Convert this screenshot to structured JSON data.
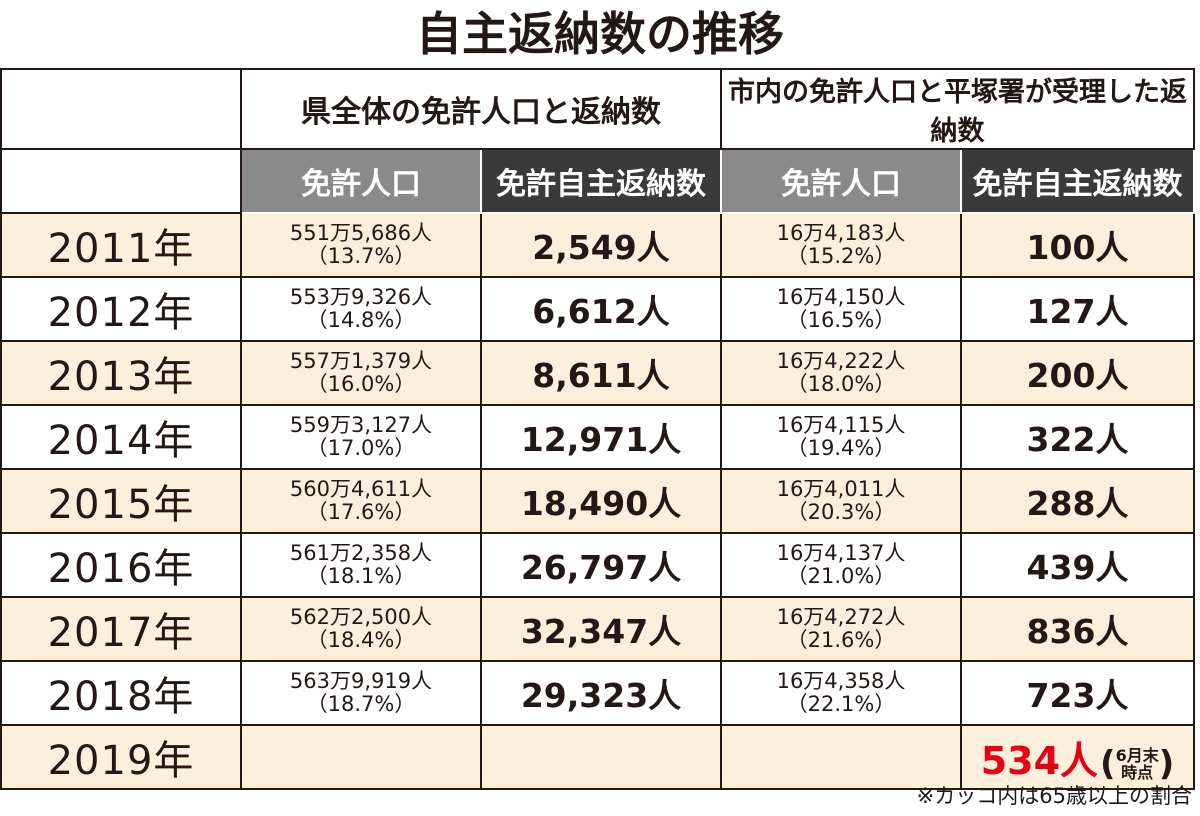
{
  "title": "自主返納数の推移",
  "header": {
    "group1": "県全体の免許人口と返納数",
    "group2": "市内の免許人口と平塚署が受理した返納数",
    "sub": [
      "免許人口",
      "免許自主返納数",
      "免許人口",
      "免許自主返納数"
    ]
  },
  "chart_data": {
    "type": "table",
    "title": "自主返納数の推移",
    "columns": [
      "",
      "免許人口",
      "免許自主返納数",
      "免許人口",
      "免許自主返納数"
    ],
    "rows": [
      {
        "year": "2011年",
        "pref_pop": "551万5,686人",
        "pref_pct": "（13.7%）",
        "pref_ret": "2,549人",
        "city_pop": "16万4,183人",
        "city_pct": "（15.2%）",
        "city_ret": "100人"
      },
      {
        "year": "2012年",
        "pref_pop": "553万9,326人",
        "pref_pct": "（14.8%）",
        "pref_ret": "6,612人",
        "city_pop": "16万4,150人",
        "city_pct": "（16.5%）",
        "city_ret": "127人"
      },
      {
        "year": "2013年",
        "pref_pop": "557万1,379人",
        "pref_pct": "（16.0%）",
        "pref_ret": "8,611人",
        "city_pop": "16万4,222人",
        "city_pct": "（18.0%）",
        "city_ret": "200人"
      },
      {
        "year": "2014年",
        "pref_pop": "559万3,127人",
        "pref_pct": "（17.0%）",
        "pref_ret": "12,971人",
        "city_pop": "16万4,115人",
        "city_pct": "（19.4%）",
        "city_ret": "322人"
      },
      {
        "year": "2015年",
        "pref_pop": "560万4,611人",
        "pref_pct": "（17.6%）",
        "pref_ret": "18,490人",
        "city_pop": "16万4,011人",
        "city_pct": "（20.3%）",
        "city_ret": "288人"
      },
      {
        "year": "2016年",
        "pref_pop": "561万2,358人",
        "pref_pct": "（18.1%）",
        "pref_ret": "26,797人",
        "city_pop": "16万4,137人",
        "city_pct": "（21.0%）",
        "city_ret": "439人"
      },
      {
        "year": "2017年",
        "pref_pop": "562万2,500人",
        "pref_pct": "（18.4%）",
        "pref_ret": "32,347人",
        "city_pop": "16万4,272人",
        "city_pct": "（21.6%）",
        "city_ret": "836人"
      },
      {
        "year": "2018年",
        "pref_pop": "563万9,919人",
        "pref_pct": "（18.7%）",
        "pref_ret": "29,323人",
        "city_pop": "16万4,358人",
        "city_pct": "（22.1%）",
        "city_ret": "723人"
      }
    ],
    "last_row": {
      "year": "2019年",
      "city_ret": "534人",
      "note_line1": "6月末",
      "note_line2": "時点"
    }
  },
  "footnote": "※カッコ内は65歳以上の割合",
  "colors": {
    "accent_red": "#e60012",
    "row_tint": "#fcf0dc",
    "header_gray": "#8a8a8a",
    "header_dark": "#3a3a3a"
  }
}
